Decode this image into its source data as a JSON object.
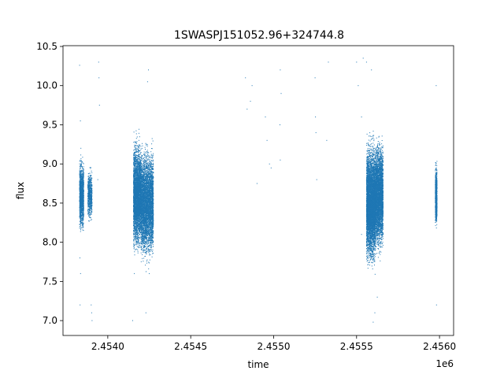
{
  "chart_data": {
    "type": "scatter",
    "title": "1SWASPJ151052.96+324744.8",
    "xlabel": "time",
    "ylabel": "flux",
    "x_offset_label": "1e6",
    "xlim": [
      2453730,
      2456085
    ],
    "ylim": [
      6.81,
      10.51
    ],
    "x_ticks": [
      2454000,
      2454500,
      2455000,
      2455500,
      2456000
    ],
    "x_tick_labels": [
      "2.4540",
      "2.4545",
      "2.4550",
      "2.4555",
      "2.4560"
    ],
    "y_ticks": [
      7.0,
      7.5,
      8.0,
      8.5,
      9.0,
      9.5,
      10.0,
      10.5
    ],
    "y_tick_labels": [
      "7.0",
      "7.5",
      "8.0",
      "8.5",
      "9.0",
      "9.5",
      "10.0",
      "10.5"
    ],
    "grid": false,
    "marker_color": "#1f77b4",
    "series": [
      {
        "segments": [
          {
            "x_start": 2453830,
            "x_end": 2453855,
            "y_center": 8.6,
            "y_spread": 0.35,
            "density": 1400
          },
          {
            "x_start": 2453880,
            "x_end": 2453905,
            "y_center": 8.6,
            "y_spread": 0.25,
            "density": 700
          },
          {
            "x_start": 2454155,
            "x_end": 2454200,
            "y_center": 8.6,
            "y_spread": 0.55,
            "density": 3500
          },
          {
            "x_start": 2454200,
            "x_end": 2454275,
            "y_center": 8.5,
            "y_spread": 0.55,
            "density": 4500
          },
          {
            "x_start": 2455560,
            "x_end": 2455615,
            "y_center": 8.5,
            "y_spread": 0.6,
            "density": 5500
          },
          {
            "x_start": 2455615,
            "x_end": 2455660,
            "y_center": 8.6,
            "y_spread": 0.55,
            "density": 3500
          },
          {
            "x_start": 2455975,
            "x_end": 2455985,
            "y_center": 8.6,
            "y_spread": 0.3,
            "density": 900
          }
        ],
        "sparse_points": [
          [
            2453830,
            10.26
          ],
          [
            2453835,
            9.55
          ],
          [
            2453838,
            9.2
          ],
          [
            2453832,
            7.8
          ],
          [
            2453836,
            7.6
          ],
          [
            2453833,
            7.2
          ],
          [
            2453905,
            7.0
          ],
          [
            2453900,
            7.2
          ],
          [
            2453903,
            7.1
          ],
          [
            2453945,
            10.3
          ],
          [
            2453947,
            10.1
          ],
          [
            2453950,
            9.75
          ],
          [
            2453940,
            8.8
          ],
          [
            2454150,
            7.0
          ],
          [
            2454160,
            7.6
          ],
          [
            2454245,
            10.2
          ],
          [
            2454240,
            10.05
          ],
          [
            2454230,
            7.1
          ],
          [
            2454250,
            7.6
          ],
          [
            2454830,
            10.1
          ],
          [
            2454840,
            9.7
          ],
          [
            2454870,
            10.0
          ],
          [
            2454860,
            9.8
          ],
          [
            2454900,
            8.75
          ],
          [
            2454950,
            9.6
          ],
          [
            2454960,
            9.3
          ],
          [
            2454975,
            9.0
          ],
          [
            2454985,
            8.95
          ],
          [
            2455040,
            10.2
          ],
          [
            2455045,
            9.9
          ],
          [
            2455038,
            9.5
          ],
          [
            2455040,
            9.05
          ],
          [
            2455250,
            10.1
          ],
          [
            2455252,
            9.6
          ],
          [
            2455255,
            9.4
          ],
          [
            2455260,
            8.8
          ],
          [
            2455330,
            10.3
          ],
          [
            2455320,
            9.3
          ],
          [
            2455500,
            10.3
          ],
          [
            2455510,
            10.0
          ],
          [
            2455530,
            9.6
          ],
          [
            2455540,
            10.35
          ],
          [
            2455560,
            10.3
          ],
          [
            2455590,
            10.2
          ],
          [
            2455600,
            6.98
          ],
          [
            2455610,
            7.1
          ],
          [
            2455625,
            7.3
          ],
          [
            2455530,
            8.1
          ],
          [
            2455980,
            10.0
          ],
          [
            2455982,
            7.2
          ]
        ]
      }
    ]
  }
}
